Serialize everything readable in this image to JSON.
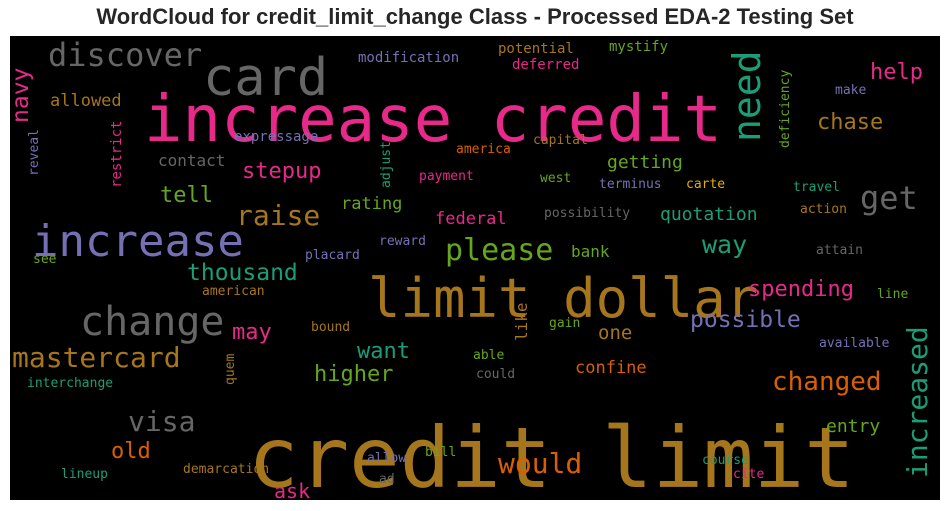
{
  "chart_data": {
    "type": "wordcloud",
    "title": "WordCloud for credit_limit_change Class - Processed EDA-2 Testing Set",
    "background": "#000000",
    "colormap": "Dark2",
    "words": [
      {
        "text": "credit limit",
        "color": "#a6761d"
      },
      {
        "text": "increase credit",
        "color": "#e7298a"
      },
      {
        "text": "limit dollar",
        "color": "#a6761d"
      },
      {
        "text": "card",
        "color": "#666666"
      },
      {
        "text": "increase",
        "color": "#7570b3"
      },
      {
        "text": "change",
        "color": "#666666"
      },
      {
        "text": "discover",
        "color": "#666666"
      },
      {
        "text": "need",
        "color": "#1b9e77"
      },
      {
        "text": "increased",
        "color": "#1b9e77"
      },
      {
        "text": "mastercard",
        "color": "#a6761d"
      },
      {
        "text": "raise",
        "color": "#a6761d"
      },
      {
        "text": "please",
        "color": "#66a61e"
      },
      {
        "text": "would",
        "color": "#d95f02"
      },
      {
        "text": "get",
        "color": "#666666"
      },
      {
        "text": "visa",
        "color": "#666666"
      },
      {
        "text": "changed",
        "color": "#d95f02"
      },
      {
        "text": "thousand",
        "color": "#1b9e77"
      },
      {
        "text": "possible",
        "color": "#7570b3"
      },
      {
        "text": "spending",
        "color": "#e7298a"
      },
      {
        "text": "navy",
        "color": "#e7298a"
      },
      {
        "text": "help",
        "color": "#e7298a"
      },
      {
        "text": "chase",
        "color": "#a6761d"
      },
      {
        "text": "way",
        "color": "#1b9e77"
      },
      {
        "text": "want",
        "color": "#1b9e77"
      },
      {
        "text": "higher",
        "color": "#66a61e"
      },
      {
        "text": "stepup",
        "color": "#e7298a"
      },
      {
        "text": "tell",
        "color": "#66a61e"
      },
      {
        "text": "may",
        "color": "#e7298a"
      },
      {
        "text": "old",
        "color": "#d95f02"
      },
      {
        "text": "ask",
        "color": "#e7298a"
      },
      {
        "text": "one",
        "color": "#a6761d"
      },
      {
        "text": "getting",
        "color": "#66a61e"
      },
      {
        "text": "quotation",
        "color": "#1b9e77"
      },
      {
        "text": "entry",
        "color": "#66a61e"
      },
      {
        "text": "confine",
        "color": "#d95f02"
      },
      {
        "text": "allowed",
        "color": "#a6761d"
      },
      {
        "text": "contact",
        "color": "#666666"
      },
      {
        "text": "rating",
        "color": "#66a61e"
      },
      {
        "text": "federal",
        "color": "#e7298a"
      },
      {
        "text": "bank",
        "color": "#66a61e"
      },
      {
        "text": "modification",
        "color": "#7570b3"
      },
      {
        "text": "potential",
        "color": "#a6761d"
      },
      {
        "text": "mystify",
        "color": "#66a61e"
      },
      {
        "text": "deferred",
        "color": "#e7298a"
      },
      {
        "text": "make",
        "color": "#7570b3"
      },
      {
        "text": "expressage",
        "color": "#7570b3"
      },
      {
        "text": "capital",
        "color": "#a6761d"
      },
      {
        "text": "america",
        "color": "#d95f02"
      },
      {
        "text": "west",
        "color": "#66a61e"
      },
      {
        "text": "terminus",
        "color": "#7570b3"
      },
      {
        "text": "carte",
        "color": "#e6ab02"
      },
      {
        "text": "travel",
        "color": "#1b9e77"
      },
      {
        "text": "action",
        "color": "#a6761d"
      },
      {
        "text": "payment",
        "color": "#e7298a"
      },
      {
        "text": "possibility",
        "color": "#666666"
      },
      {
        "text": "reward",
        "color": "#7570b3"
      },
      {
        "text": "placard",
        "color": "#7570b3"
      },
      {
        "text": "attain",
        "color": "#666666"
      },
      {
        "text": "see",
        "color": "#66a61e"
      },
      {
        "text": "american",
        "color": "#a6761d"
      },
      {
        "text": "line",
        "color": "#66a61e"
      },
      {
        "text": "bound",
        "color": "#a6761d"
      },
      {
        "text": "gain",
        "color": "#66a61e"
      },
      {
        "text": "available",
        "color": "#7570b3"
      },
      {
        "text": "able",
        "color": "#66a61e"
      },
      {
        "text": "could",
        "color": "#666666"
      },
      {
        "text": "interchange",
        "color": "#1b9e77"
      },
      {
        "text": "allow",
        "color": "#7570b3"
      },
      {
        "text": "bill",
        "color": "#66a61e"
      },
      {
        "text": "course",
        "color": "#1b9e77"
      },
      {
        "text": "cite",
        "color": "#e7298a"
      },
      {
        "text": "lineup",
        "color": "#1b9e77"
      },
      {
        "text": "demarcation",
        "color": "#a6761d"
      },
      {
        "text": "ad",
        "color": "#666666"
      },
      {
        "text": "like",
        "color": "#a6761d"
      },
      {
        "text": "quem",
        "color": "#a6761d"
      },
      {
        "text": "deficiency",
        "color": "#66a61e"
      },
      {
        "text": "adjust",
        "color": "#1b9e77"
      },
      {
        "text": "restrict",
        "color": "#e7298a"
      },
      {
        "text": "reveal",
        "color": "#7570b3"
      }
    ]
  }
}
